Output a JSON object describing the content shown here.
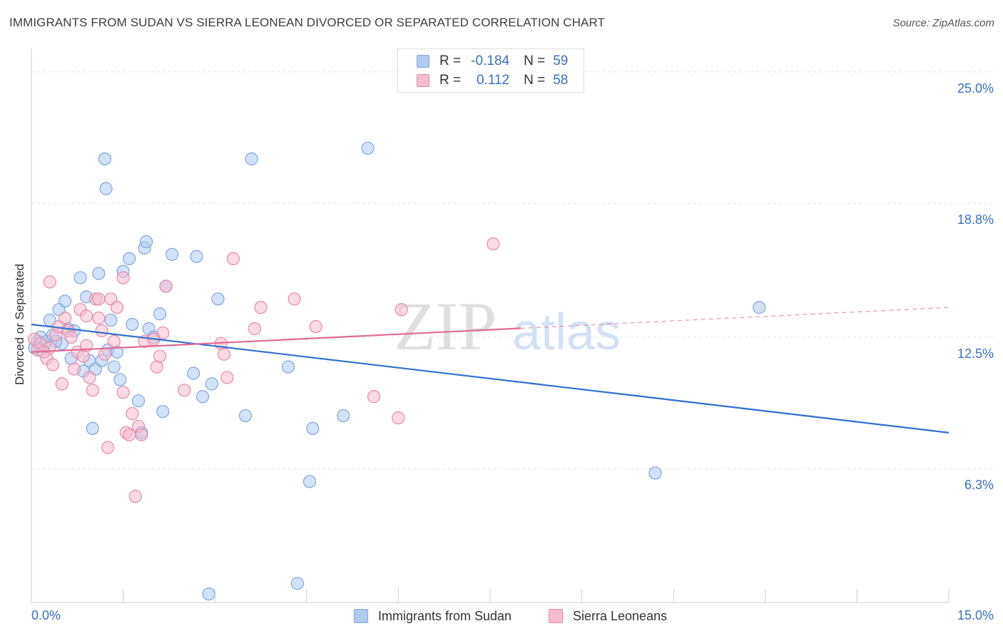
{
  "title": "IMMIGRANTS FROM SUDAN VS SIERRA LEONEAN DIVORCED OR SEPARATED CORRELATION CHART",
  "source": "Source: ZipAtlas.com",
  "watermark": {
    "zip": "ZIP",
    "atlas": "atlas"
  },
  "colors": {
    "blue_fill": "#aecbf0",
    "blue_stroke": "#7fa7dc",
    "blue_line": "#2f6fd0",
    "pink_fill": "#f6bcd0",
    "pink_stroke": "#e58aa8",
    "pink_line": "#e06a92",
    "axis_text": "#3a6fc4",
    "grid": "#e3e3e3"
  },
  "legend": {
    "rows": [
      {
        "r_label": "R =",
        "r_value": "-0.184",
        "n_label": "N =",
        "n_value": "59",
        "color": "blue"
      },
      {
        "r_label": "R =",
        "r_value": "0.112",
        "n_label": "N =",
        "n_value": "58",
        "color": "pink"
      }
    ]
  },
  "bottom_legend": [
    {
      "label": "Immigrants from Sudan",
      "color": "blue"
    },
    {
      "label": "Sierra Leoneans",
      "color": "pink"
    }
  ],
  "chart_data": {
    "type": "scatter",
    "title": "IMMIGRANTS FROM SUDAN VS SIERRA LEONEAN DIVORCED OR SEPARATED CORRELATION CHART",
    "xlabel": "",
    "ylabel": "Divorced or Separated",
    "xlim": [
      0,
      15
    ],
    "ylim": [
      0,
      25.9
    ],
    "x_tick_labels": [
      "0.0%",
      "15.0%"
    ],
    "y_ticks": [
      6.3,
      12.5,
      18.8,
      25.0
    ],
    "y_tick_labels": [
      "6.3%",
      "12.5%",
      "18.8%",
      "25.0%"
    ],
    "grid": true,
    "legend_position": "top-center",
    "series": [
      {
        "name": "Immigrants from Sudan",
        "color": "blue",
        "trend": {
          "x": [
            0,
            15
          ],
          "y": [
            13.1,
            8.0
          ],
          "dashed_from": null
        },
        "points": [
          [
            0.05,
            12.0
          ],
          [
            0.1,
            12.3
          ],
          [
            0.15,
            12.5
          ],
          [
            0.2,
            12.1
          ],
          [
            0.25,
            12.3
          ],
          [
            0.3,
            13.3
          ],
          [
            0.35,
            12.6
          ],
          [
            0.45,
            13.8
          ],
          [
            0.5,
            12.2
          ],
          [
            0.55,
            14.2
          ],
          [
            0.6,
            12.9
          ],
          [
            0.65,
            11.5
          ],
          [
            0.7,
            12.8
          ],
          [
            0.8,
            15.3
          ],
          [
            0.85,
            10.9
          ],
          [
            0.9,
            14.4
          ],
          [
            0.95,
            11.4
          ],
          [
            1.0,
            8.2
          ],
          [
            1.05,
            11.0
          ],
          [
            1.1,
            15.5
          ],
          [
            1.15,
            11.4
          ],
          [
            1.2,
            20.9
          ],
          [
            1.25,
            11.9
          ],
          [
            1.3,
            13.3
          ],
          [
            1.35,
            11.1
          ],
          [
            1.4,
            11.8
          ],
          [
            1.45,
            10.5
          ],
          [
            1.5,
            15.6
          ],
          [
            1.6,
            16.2
          ],
          [
            1.65,
            13.1
          ],
          [
            1.75,
            9.5
          ],
          [
            1.8,
            8.0
          ],
          [
            1.85,
            16.7
          ],
          [
            1.88,
            17.0
          ],
          [
            1.92,
            12.9
          ],
          [
            2.0,
            12.5
          ],
          [
            2.1,
            13.6
          ],
          [
            2.15,
            9.0
          ],
          [
            2.2,
            14.9
          ],
          [
            2.3,
            16.4
          ],
          [
            2.65,
            10.8
          ],
          [
            2.7,
            16.3
          ],
          [
            2.8,
            9.7
          ],
          [
            2.9,
            0.4
          ],
          [
            2.95,
            10.3
          ],
          [
            3.05,
            14.3
          ],
          [
            3.5,
            8.8
          ],
          [
            3.6,
            20.9
          ],
          [
            4.2,
            11.1
          ],
          [
            4.35,
            0.9
          ],
          [
            4.55,
            5.7
          ],
          [
            4.6,
            8.2
          ],
          [
            5.1,
            8.8
          ],
          [
            5.5,
            21.4
          ],
          [
            10.2,
            6.1
          ],
          [
            11.9,
            13.9
          ],
          [
            1.22,
            19.5
          ],
          [
            0.15,
            11.9
          ],
          [
            0.4,
            12.3
          ]
        ]
      },
      {
        "name": "Sierra Leoneans",
        "color": "pink",
        "trend": {
          "x": [
            0,
            15
          ],
          "y": [
            11.8,
            13.9
          ],
          "dashed_from": 8.0
        },
        "points": [
          [
            0.05,
            12.4
          ],
          [
            0.1,
            11.9
          ],
          [
            0.15,
            12.2
          ],
          [
            0.25,
            11.5
          ],
          [
            0.3,
            12.0
          ],
          [
            0.35,
            11.2
          ],
          [
            0.4,
            12.6
          ],
          [
            0.45,
            13.0
          ],
          [
            0.5,
            10.3
          ],
          [
            0.55,
            13.4
          ],
          [
            0.6,
            12.8
          ],
          [
            0.65,
            12.5
          ],
          [
            0.7,
            11.0
          ],
          [
            0.75,
            11.8
          ],
          [
            0.8,
            13.8
          ],
          [
            0.85,
            11.6
          ],
          [
            0.9,
            13.5
          ],
          [
            0.95,
            10.6
          ],
          [
            1.0,
            10.0
          ],
          [
            1.05,
            14.3
          ],
          [
            1.1,
            13.4
          ],
          [
            1.15,
            12.8
          ],
          [
            1.2,
            11.7
          ],
          [
            1.3,
            14.3
          ],
          [
            1.35,
            12.3
          ],
          [
            1.4,
            13.9
          ],
          [
            1.5,
            9.9
          ],
          [
            1.55,
            8.0
          ],
          [
            1.6,
            7.9
          ],
          [
            1.65,
            8.9
          ],
          [
            1.7,
            5.0
          ],
          [
            1.75,
            8.3
          ],
          [
            1.8,
            7.9
          ],
          [
            1.85,
            12.3
          ],
          [
            2.0,
            12.4
          ],
          [
            2.05,
            11.1
          ],
          [
            2.1,
            11.6
          ],
          [
            2.15,
            12.7
          ],
          [
            2.5,
            10.0
          ],
          [
            3.1,
            12.2
          ],
          [
            3.15,
            11.7
          ],
          [
            3.2,
            10.6
          ],
          [
            3.3,
            16.2
          ],
          [
            3.65,
            12.9
          ],
          [
            3.75,
            13.9
          ],
          [
            4.3,
            14.3
          ],
          [
            4.65,
            13.0
          ],
          [
            5.6,
            9.7
          ],
          [
            6.0,
            8.7
          ],
          [
            6.05,
            13.8
          ],
          [
            7.55,
            16.9
          ],
          [
            1.1,
            14.3
          ],
          [
            0.2,
            11.8
          ],
          [
            0.9,
            12.1
          ],
          [
            1.25,
            7.3
          ],
          [
            2.2,
            14.9
          ],
          [
            0.3,
            15.1
          ],
          [
            1.5,
            15.3
          ]
        ]
      }
    ]
  }
}
